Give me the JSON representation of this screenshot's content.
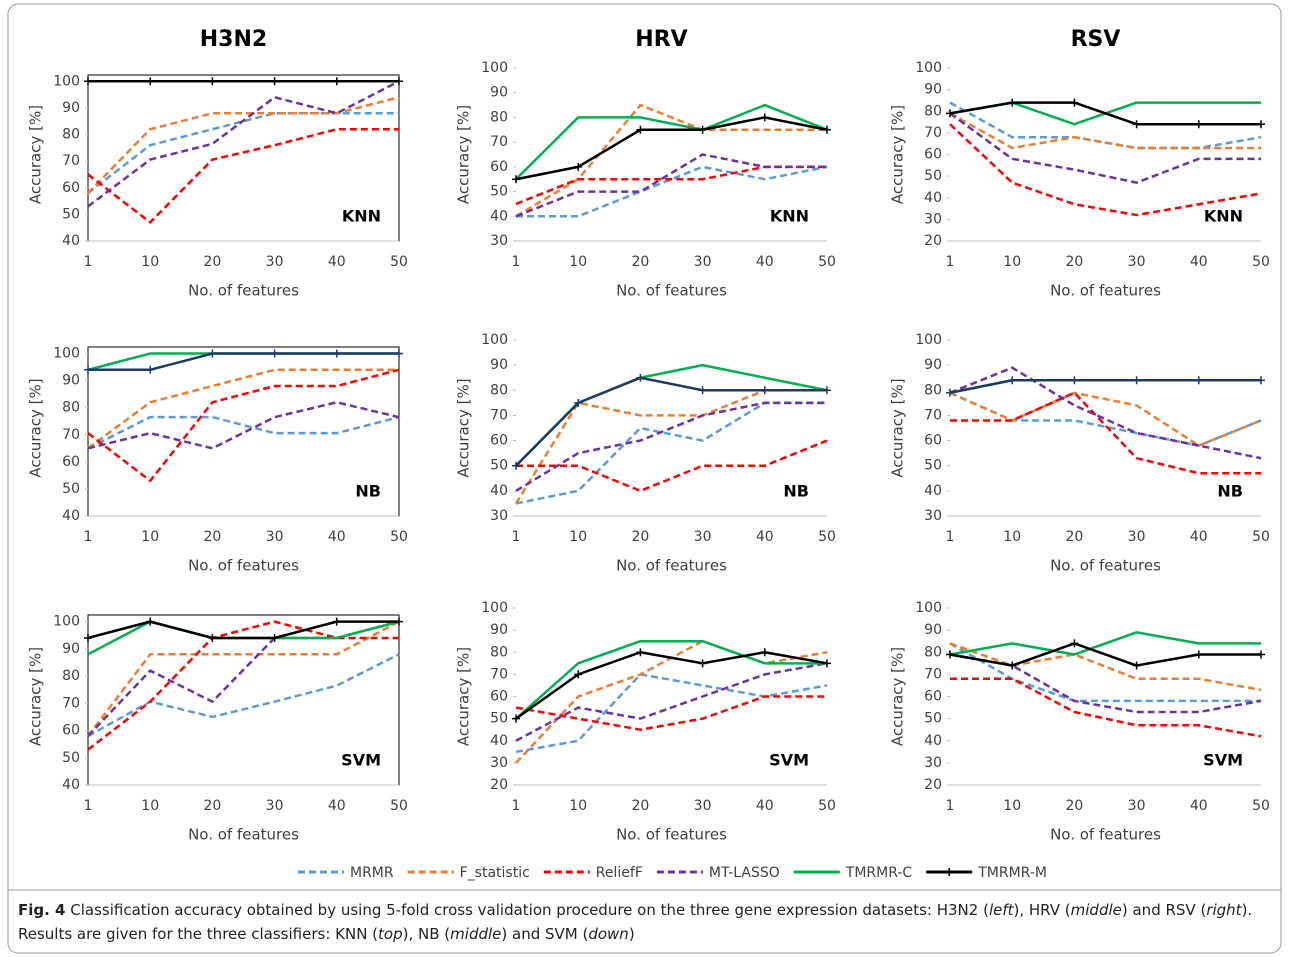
{
  "chart_data": [
    {
      "type": "line",
      "title": "H3N2",
      "annotation": "KNN",
      "xlabel": "No. of features",
      "ylabel": "Accuracy [%]",
      "frame": true,
      "categories": [
        1,
        10,
        20,
        30,
        40,
        50
      ],
      "ylim": [
        40,
        105
      ],
      "yticks": [
        40,
        50,
        60,
        70,
        80,
        90,
        100
      ],
      "series": [
        {
          "name": "MRMR",
          "color": "#5b9bd5",
          "dashed": true,
          "values": [
            58,
            76,
            82,
            88,
            88,
            88
          ]
        },
        {
          "name": "F_statistic",
          "color": "#ed7d31",
          "dashed": true,
          "values": [
            58,
            82,
            88,
            88,
            88,
            94
          ]
        },
        {
          "name": "ReliefF",
          "color": "#ff0000",
          "dashed": true,
          "values": [
            65,
            47,
            70.6,
            76,
            82,
            82
          ]
        },
        {
          "name": "MT-LASSO",
          "color": "#7030a0",
          "dashed": true,
          "values": [
            53,
            70.6,
            76.5,
            94,
            88,
            100
          ]
        },
        {
          "name": "TMRMR-C",
          "color": "#00b050",
          "dashed": false,
          "values": [
            100,
            100,
            100,
            100,
            100,
            100
          ]
        },
        {
          "name": "TMRMR-M",
          "color": "#000000",
          "dashed": false,
          "marker": "+",
          "values": [
            100,
            100,
            100,
            100,
            100,
            100
          ]
        }
      ]
    },
    {
      "type": "line",
      "title": "HRV",
      "annotation": "KNN",
      "xlabel": "No. of features",
      "ylabel": "Accuracy [%]",
      "frame": false,
      "categories": [
        1,
        10,
        20,
        30,
        40,
        50
      ],
      "ylim": [
        30,
        100
      ],
      "yticks": [
        30,
        40,
        50,
        60,
        70,
        80,
        90,
        100
      ],
      "series": [
        {
          "name": "MRMR",
          "color": "#5b9bd5",
          "dashed": true,
          "values": [
            40,
            40,
            50,
            60,
            55,
            60
          ]
        },
        {
          "name": "F_statistic",
          "color": "#ed7d31",
          "dashed": true,
          "values": [
            40,
            55,
            85,
            75,
            75,
            75
          ]
        },
        {
          "name": "ReliefF",
          "color": "#ff0000",
          "dashed": true,
          "values": [
            45,
            55,
            55,
            55,
            60,
            60
          ]
        },
        {
          "name": "MT-LASSO",
          "color": "#7030a0",
          "dashed": true,
          "values": [
            40,
            50,
            50,
            65,
            60,
            60
          ]
        },
        {
          "name": "TMRMR-C",
          "color": "#00b050",
          "dashed": false,
          "values": [
            55,
            80,
            80,
            75,
            85,
            75
          ]
        },
        {
          "name": "TMRMR-M",
          "color": "#000000",
          "dashed": false,
          "marker": "+",
          "values": [
            55,
            60,
            75,
            75,
            80,
            75
          ]
        }
      ]
    },
    {
      "type": "line",
      "title": "RSV",
      "annotation": "KNN",
      "xlabel": "No. of features",
      "ylabel": "Accuracy [%]",
      "frame": false,
      "categories": [
        1,
        10,
        20,
        30,
        40,
        50
      ],
      "ylim": [
        20,
        100
      ],
      "yticks": [
        20,
        30,
        40,
        50,
        60,
        70,
        80,
        90,
        100
      ],
      "series": [
        {
          "name": "MRMR",
          "color": "#5b9bd5",
          "dashed": true,
          "values": [
            84,
            68,
            68,
            63,
            63,
            68
          ]
        },
        {
          "name": "F_statistic",
          "color": "#ed7d31",
          "dashed": true,
          "values": [
            79,
            63,
            68,
            63,
            63,
            63
          ]
        },
        {
          "name": "ReliefF",
          "color": "#ff0000",
          "dashed": true,
          "values": [
            74,
            47,
            37,
            32,
            37,
            42
          ]
        },
        {
          "name": "MT-LASSO",
          "color": "#7030a0",
          "dashed": true,
          "values": [
            79,
            58,
            53,
            47,
            58,
            58
          ]
        },
        {
          "name": "TMRMR-C",
          "color": "#00b050",
          "dashed": false,
          "values": [
            79,
            84,
            74,
            84,
            84,
            84
          ]
        },
        {
          "name": "TMRMR-M",
          "color": "#000000",
          "dashed": false,
          "marker": "+",
          "values": [
            79,
            84,
            84,
            74,
            74,
            74
          ]
        }
      ]
    },
    {
      "type": "line",
      "annotation": "NB",
      "xlabel": "No. of features",
      "ylabel": "Accuracy [%]",
      "frame": true,
      "categories": [
        1,
        10,
        20,
        30,
        40,
        50
      ],
      "ylim": [
        40,
        105
      ],
      "yticks": [
        40,
        50,
        60,
        70,
        80,
        90,
        100
      ],
      "series": [
        {
          "name": "MRMR",
          "color": "#5b9bd5",
          "dashed": true,
          "values": [
            65,
            76.5,
            76.5,
            70.6,
            70.6,
            76.5
          ]
        },
        {
          "name": "F_statistic",
          "color": "#ed7d31",
          "dashed": true,
          "values": [
            65,
            82,
            88,
            94,
            94,
            94
          ]
        },
        {
          "name": "ReliefF",
          "color": "#ff0000",
          "dashed": true,
          "values": [
            70.6,
            53,
            82,
            88,
            88,
            94
          ]
        },
        {
          "name": "MT-LASSO",
          "color": "#7030a0",
          "dashed": true,
          "values": [
            65,
            70.6,
            65,
            76.5,
            82,
            76.5
          ]
        },
        {
          "name": "TMRMR-C",
          "color": "#00b050",
          "dashed": false,
          "values": [
            94,
            100,
            100,
            100,
            100,
            100
          ]
        },
        {
          "name": "TMRMR-M",
          "color": "#1f3864",
          "dashed": false,
          "marker": "+",
          "values": [
            94,
            94,
            100,
            100,
            100,
            100
          ]
        }
      ]
    },
    {
      "type": "line",
      "annotation": "NB",
      "xlabel": "No. of features",
      "ylabel": "Accuracy [%]",
      "frame": false,
      "categories": [
        1,
        10,
        20,
        30,
        40,
        50
      ],
      "ylim": [
        30,
        100
      ],
      "yticks": [
        30,
        40,
        50,
        60,
        70,
        80,
        90,
        100
      ],
      "series": [
        {
          "name": "MRMR",
          "color": "#5b9bd5",
          "dashed": true,
          "values": [
            35,
            40,
            65,
            60,
            75,
            75
          ]
        },
        {
          "name": "F_statistic",
          "color": "#ed7d31",
          "dashed": true,
          "values": [
            35,
            75,
            70,
            70,
            80,
            80
          ]
        },
        {
          "name": "ReliefF",
          "color": "#ff0000",
          "dashed": true,
          "values": [
            50,
            50,
            40,
            50,
            50,
            60
          ]
        },
        {
          "name": "MT-LASSO",
          "color": "#7030a0",
          "dashed": true,
          "values": [
            40,
            55,
            60,
            70,
            75,
            75
          ]
        },
        {
          "name": "TMRMR-C",
          "color": "#00b050",
          "dashed": false,
          "values": [
            50,
            75,
            85,
            90,
            85,
            80
          ]
        },
        {
          "name": "TMRMR-M",
          "color": "#1f3864",
          "dashed": false,
          "marker": "+",
          "values": [
            50,
            75,
            85,
            80,
            80,
            80
          ]
        }
      ]
    },
    {
      "type": "line",
      "annotation": "NB",
      "xlabel": "No. of features",
      "ylabel": "Accuracy [%]",
      "frame": false,
      "categories": [
        1,
        10,
        20,
        30,
        40,
        50
      ],
      "ylim": [
        30,
        100
      ],
      "yticks": [
        30,
        40,
        50,
        60,
        70,
        80,
        90,
        100
      ],
      "series": [
        {
          "name": "MRMR",
          "color": "#5b9bd5",
          "dashed": true,
          "values": [
            79,
            68,
            68,
            63,
            58,
            68
          ]
        },
        {
          "name": "F_statistic",
          "color": "#ed7d31",
          "dashed": true,
          "values": [
            79,
            68,
            79,
            74,
            58,
            68
          ]
        },
        {
          "name": "ReliefF",
          "color": "#ff0000",
          "dashed": true,
          "values": [
            68,
            68,
            79,
            53,
            47,
            47
          ]
        },
        {
          "name": "MT-LASSO",
          "color": "#7030a0",
          "dashed": true,
          "values": [
            79,
            89,
            74,
            63,
            58,
            53
          ]
        },
        {
          "name": "TMRMR-C",
          "color": "#00b050",
          "dashed": false,
          "values": [
            79,
            84,
            84,
            84,
            84,
            84
          ]
        },
        {
          "name": "TMRMR-M",
          "color": "#1f3864",
          "dashed": false,
          "marker": "+",
          "values": [
            79,
            84,
            84,
            84,
            84,
            84
          ]
        }
      ]
    },
    {
      "type": "line",
      "annotation": "SVM",
      "xlabel": "No. of features",
      "ylabel": "Accuracy [%]",
      "frame": true,
      "categories": [
        1,
        10,
        20,
        30,
        40,
        50
      ],
      "ylim": [
        40,
        105
      ],
      "yticks": [
        40,
        50,
        60,
        70,
        80,
        90,
        100
      ],
      "series": [
        {
          "name": "MRMR",
          "color": "#5b9bd5",
          "dashed": true,
          "values": [
            58,
            70.6,
            65,
            70.6,
            76.5,
            88
          ]
        },
        {
          "name": "F_statistic",
          "color": "#ed7d31",
          "dashed": true,
          "values": [
            58,
            88,
            88,
            88,
            88,
            100
          ]
        },
        {
          "name": "ReliefF",
          "color": "#ff0000",
          "dashed": true,
          "values": [
            53,
            70.6,
            94,
            100,
            94,
            94
          ]
        },
        {
          "name": "MT-LASSO",
          "color": "#7030a0",
          "dashed": true,
          "values": [
            58,
            82,
            70.6,
            94,
            94,
            100
          ]
        },
        {
          "name": "TMRMR-C",
          "color": "#00b050",
          "dashed": false,
          "values": [
            88,
            100,
            94,
            94,
            94,
            100
          ]
        },
        {
          "name": "TMRMR-M",
          "color": "#000000",
          "dashed": false,
          "marker": "+",
          "values": [
            94,
            100,
            94,
            94,
            100,
            100
          ]
        }
      ]
    },
    {
      "type": "line",
      "annotation": "SVM",
      "xlabel": "No. of features",
      "ylabel": "Accuracy [%]",
      "frame": false,
      "categories": [
        1,
        10,
        20,
        30,
        40,
        50
      ],
      "ylim": [
        20,
        100
      ],
      "yticks": [
        20,
        30,
        40,
        50,
        60,
        70,
        80,
        90,
        100
      ],
      "series": [
        {
          "name": "MRMR",
          "color": "#5b9bd5",
          "dashed": true,
          "values": [
            35,
            40,
            70,
            65,
            60,
            65
          ]
        },
        {
          "name": "F_statistic",
          "color": "#ed7d31",
          "dashed": true,
          "values": [
            30,
            60,
            70,
            85,
            75,
            80
          ]
        },
        {
          "name": "ReliefF",
          "color": "#ff0000",
          "dashed": true,
          "values": [
            55,
            50,
            45,
            50,
            60,
            60
          ]
        },
        {
          "name": "MT-LASSO",
          "color": "#7030a0",
          "dashed": true,
          "values": [
            40,
            55,
            50,
            60,
            70,
            75
          ]
        },
        {
          "name": "TMRMR-C",
          "color": "#00b050",
          "dashed": false,
          "values": [
            50,
            75,
            85,
            85,
            75,
            75
          ]
        },
        {
          "name": "TMRMR-M",
          "color": "#000000",
          "dashed": false,
          "marker": "+",
          "values": [
            50,
            70,
            80,
            75,
            80,
            75
          ]
        }
      ]
    },
    {
      "type": "line",
      "annotation": "SVM",
      "xlabel": "No. of features",
      "ylabel": "Accuracy [%]",
      "frame": false,
      "categories": [
        1,
        10,
        20,
        30,
        40,
        50
      ],
      "ylim": [
        20,
        100
      ],
      "yticks": [
        20,
        30,
        40,
        50,
        60,
        70,
        80,
        90,
        100
      ],
      "series": [
        {
          "name": "MRMR",
          "color": "#5b9bd5",
          "dashed": true,
          "values": [
            84,
            68,
            58,
            58,
            58,
            58
          ]
        },
        {
          "name": "F_statistic",
          "color": "#ed7d31",
          "dashed": true,
          "values": [
            84,
            74,
            79,
            68,
            68,
            63
          ]
        },
        {
          "name": "ReliefF",
          "color": "#ff0000",
          "dashed": true,
          "values": [
            68,
            68,
            53,
            47,
            47,
            42
          ]
        },
        {
          "name": "MT-LASSO",
          "color": "#7030a0",
          "dashed": true,
          "values": [
            79,
            74,
            58,
            53,
            53,
            58
          ]
        },
        {
          "name": "TMRMR-C",
          "color": "#00b050",
          "dashed": false,
          "values": [
            79,
            84,
            79,
            89,
            84,
            84
          ]
        },
        {
          "name": "TMRMR-M",
          "color": "#000000",
          "dashed": false,
          "marker": "+",
          "values": [
            79,
            74,
            84,
            74,
            79,
            79
          ]
        }
      ]
    }
  ],
  "caption": {
    "label": "Fig. 4",
    "segments": [
      {
        "text": " Classification accuracy obtained by using 5-fold cross validation procedure on the three gene expression datasets: H3N2 (",
        "italic": false
      },
      {
        "text": "left",
        "italic": true
      },
      {
        "text": "), HRV (",
        "italic": false
      },
      {
        "text": "middle",
        "italic": true
      },
      {
        "text": ") and RSV (",
        "italic": false
      },
      {
        "text": "right",
        "italic": true
      },
      {
        "text": "). Results are given for the three classifiers: KNN (",
        "italic": false
      },
      {
        "text": "top",
        "italic": true
      },
      {
        "text": "), NB (",
        "italic": false
      },
      {
        "text": "middle",
        "italic": true
      },
      {
        "text": ") and SVM (",
        "italic": false
      },
      {
        "text": "down",
        "italic": true
      },
      {
        "text": ")",
        "italic": false
      }
    ]
  }
}
